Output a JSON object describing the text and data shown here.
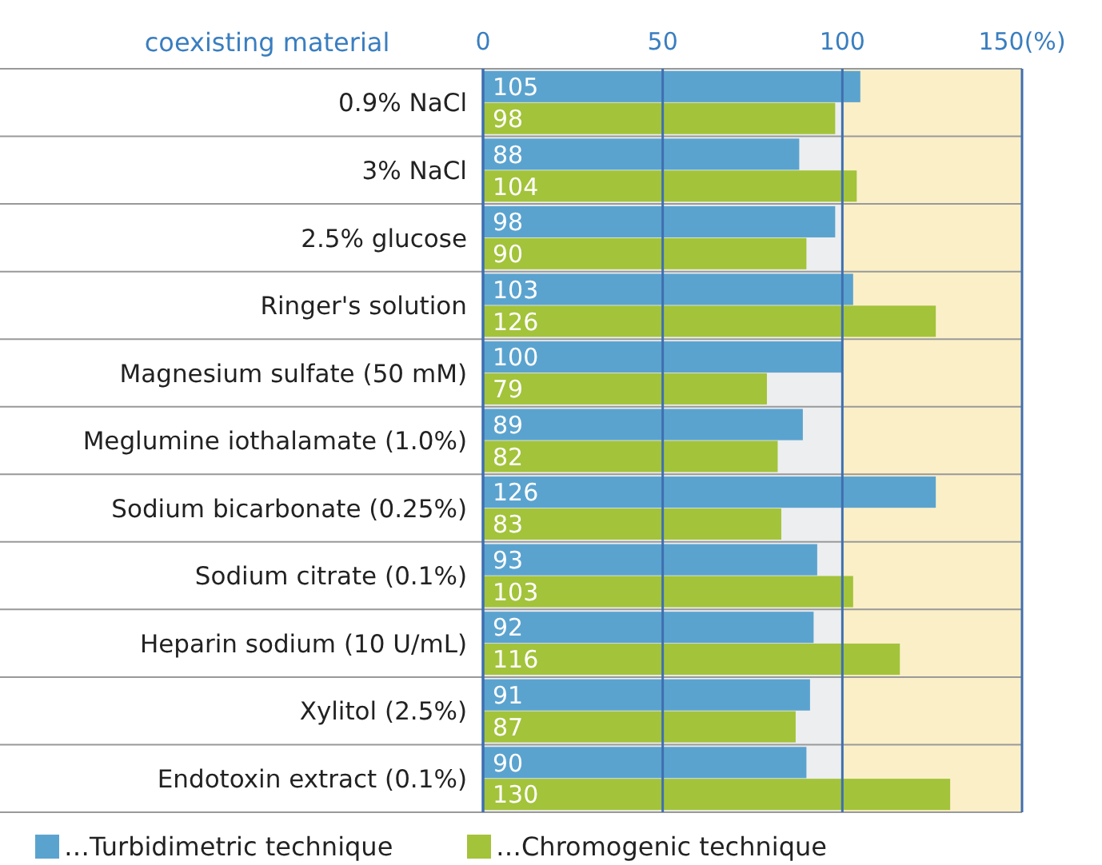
{
  "chart_data": {
    "type": "bar",
    "orientation": "horizontal",
    "ylabel": "coexisting material",
    "categories": [
      "0.9% NaCl",
      "3% NaCl",
      "2.5% glucose",
      "Ringer's solution",
      "Magnesium sulfate (50 mM)",
      "Meglumine iothalamate (1.0%)",
      "Sodium bicarbonate (0.25%)",
      "Sodium citrate (0.1%)",
      "Heparin sodium (10 U/mL)",
      "Xylitol (2.5%)",
      "Endotoxin extract (0.1%)"
    ],
    "series": [
      {
        "name": "…Turbidimetric technique",
        "color": "#5ba3cf",
        "values": [
          105,
          88,
          98,
          103,
          100,
          89,
          126,
          93,
          92,
          91,
          90
        ]
      },
      {
        "name": "…Chromogenic technique",
        "color": "#a3c33a",
        "values": [
          98,
          104,
          90,
          126,
          79,
          82,
          83,
          103,
          116,
          87,
          130
        ]
      }
    ],
    "xlim": [
      0,
      150
    ],
    "xticks": [
      0,
      50,
      100,
      {
        "value": 150,
        "label": "150(%)"
      }
    ],
    "bands": [
      {
        "axis": "x",
        "from": 100,
        "to": 150,
        "color": "#fbefc8"
      }
    ],
    "grid": "x",
    "legend": "bottom",
    "data_labels": true
  }
}
